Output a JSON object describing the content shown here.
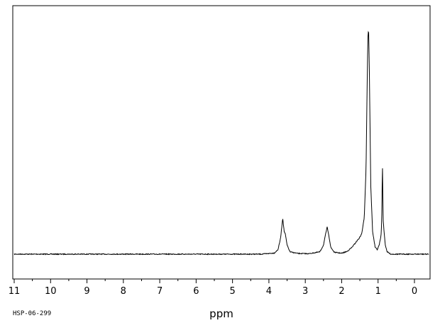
{
  "chart_data": {
    "type": "line",
    "title": "",
    "xlabel": "ppm",
    "ylabel": "",
    "x_reversed": true,
    "xlim": [
      11,
      -0.4
    ],
    "ylim": [
      0,
      1.0
    ],
    "grid": false,
    "x_ticks": [
      "11",
      "10",
      "9",
      "8",
      "7",
      "6",
      "5",
      "4",
      "3",
      "2",
      "1",
      "0"
    ],
    "sample_id": "HSP-06-299",
    "peaks": [
      {
        "ppm": 3.62,
        "height": 0.16
      },
      {
        "ppm": 3.55,
        "height": 0.09
      },
      {
        "ppm": 2.4,
        "height": 0.12
      },
      {
        "ppm": 1.52,
        "height": 0.07
      },
      {
        "ppm": 1.26,
        "height": 1.0
      },
      {
        "ppm": 0.92,
        "height": 0.08
      },
      {
        "ppm": 0.88,
        "height": 0.41
      }
    ],
    "series": [
      {
        "values": [
          [
            11.0,
            0.0
          ],
          [
            10.0,
            0.0
          ],
          [
            9.0,
            0.0
          ],
          [
            8.0,
            0.0
          ],
          [
            7.0,
            0.0
          ],
          [
            6.0,
            0.0
          ],
          [
            5.0,
            0.0
          ],
          [
            4.2,
            0.0
          ],
          [
            3.85,
            0.005
          ],
          [
            3.75,
            0.02
          ],
          [
            3.68,
            0.07
          ],
          [
            3.62,
            0.16
          ],
          [
            3.58,
            0.1
          ],
          [
            3.55,
            0.09
          ],
          [
            3.5,
            0.04
          ],
          [
            3.42,
            0.01
          ],
          [
            3.2,
            0.003
          ],
          [
            2.9,
            0.002
          ],
          [
            2.6,
            0.01
          ],
          [
            2.5,
            0.04
          ],
          [
            2.44,
            0.09
          ],
          [
            2.4,
            0.12
          ],
          [
            2.36,
            0.09
          ],
          [
            2.3,
            0.03
          ],
          [
            2.2,
            0.008
          ],
          [
            2.0,
            0.004
          ],
          [
            1.85,
            0.012
          ],
          [
            1.72,
            0.03
          ],
          [
            1.62,
            0.05
          ],
          [
            1.55,
            0.065
          ],
          [
            1.52,
            0.07
          ],
          [
            1.45,
            0.09
          ],
          [
            1.38,
            0.16
          ],
          [
            1.33,
            0.38
          ],
          [
            1.3,
            0.75
          ],
          [
            1.28,
            0.96
          ],
          [
            1.26,
            1.0
          ],
          [
            1.24,
            0.82
          ],
          [
            1.2,
            0.3
          ],
          [
            1.15,
            0.1
          ],
          [
            1.08,
            0.03
          ],
          [
            1.02,
            0.02
          ],
          [
            0.97,
            0.04
          ],
          [
            0.92,
            0.08
          ],
          [
            0.9,
            0.14
          ],
          [
            0.88,
            0.41
          ],
          [
            0.86,
            0.15
          ],
          [
            0.83,
            0.09
          ],
          [
            0.8,
            0.04
          ],
          [
            0.75,
            0.01
          ],
          [
            0.65,
            0.0
          ],
          [
            0.4,
            0.0
          ],
          [
            0.0,
            0.0
          ],
          [
            -0.4,
            0.0
          ]
        ]
      }
    ]
  }
}
